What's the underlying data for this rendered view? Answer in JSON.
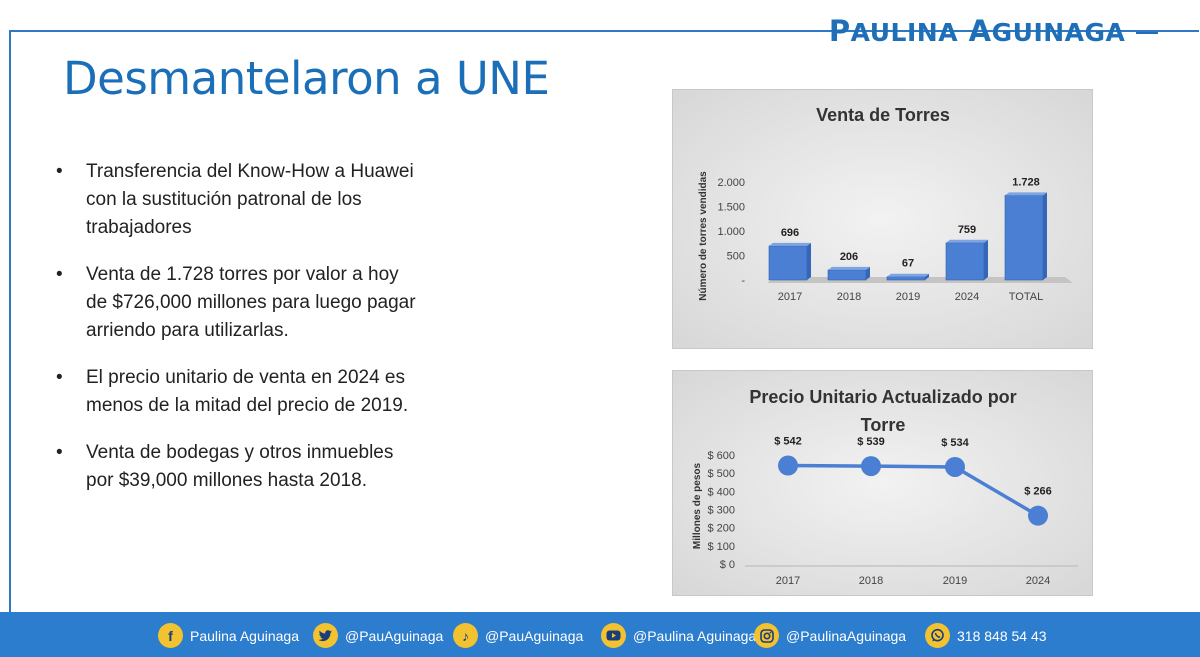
{
  "brand": {
    "name_p": "P",
    "name_rest1": "AULINA",
    "name_a": "A",
    "name_rest2": "GUINAGA"
  },
  "slide": {
    "title": "Desmantelaron a UNE"
  },
  "bullets": [
    {
      "text": "Transferencia del Know-How a Huawei con la sustitución patronal de los trabajadores"
    },
    {
      "text": "Venta de 1.728 torres por valor a hoy de $726,000 millones para luego pagar arriendo para utilizarlas."
    },
    {
      "text": "El precio unitario de venta en 2024 es menos de la mitad del precio de 2019."
    },
    {
      "text": "Venta de bodegas y otros inmuebles por $39,000 millones hasta 2018."
    }
  ],
  "bullet_symbol": "•",
  "colors": {
    "accent": "#2f78c4",
    "bar": "#4a7fd4",
    "line": "#4a7fd4",
    "footer": "#2c7dcd",
    "icon": "#f2c230"
  },
  "chart_data": [
    {
      "type": "bar",
      "title": "Venta de Torres",
      "ylabel": "Número de torres vendidas",
      "xlabel": "",
      "categories": [
        "2017",
        "2018",
        "2019",
        "2024",
        "TOTAL"
      ],
      "values": [
        696,
        206,
        67,
        759,
        1728
      ],
      "data_labels": [
        "696",
        "206",
        "67",
        "759",
        "1.728"
      ],
      "ylim": [
        0,
        2000
      ],
      "yticks": [
        {
          "value": 0,
          "label": "-"
        },
        {
          "value": 500,
          "label": "500"
        },
        {
          "value": 1000,
          "label": "1.000"
        },
        {
          "value": 1500,
          "label": "1.500"
        },
        {
          "value": 2000,
          "label": "2.000"
        }
      ],
      "grid": false,
      "style": "3d"
    },
    {
      "type": "line",
      "title": "Precio Unitario Actualizado por Torre",
      "title_lines": [
        "Precio Unitario Actualizado por",
        "Torre"
      ],
      "ylabel": "Millones de pesos",
      "xlabel": "",
      "x": [
        "2017",
        "2018",
        "2019",
        "2024"
      ],
      "values": [
        542,
        539,
        534,
        266
      ],
      "data_labels": [
        "$ 542",
        "$ 539",
        "$ 534",
        "$ 266"
      ],
      "ylim": [
        0,
        600
      ],
      "yticks": [
        {
          "value": 0,
          "label": "$ 0"
        },
        {
          "value": 100,
          "label": "$ 100"
        },
        {
          "value": 200,
          "label": "$ 200"
        },
        {
          "value": 300,
          "label": "$ 300"
        },
        {
          "value": 400,
          "label": "$ 400"
        },
        {
          "value": 500,
          "label": "$ 500"
        },
        {
          "value": 600,
          "label": "$ 600"
        }
      ],
      "grid": false,
      "markers": true
    }
  ],
  "footer": {
    "items": [
      {
        "icon": "facebook-icon",
        "glyph": "f",
        "text": "Paulina Aguinaga"
      },
      {
        "icon": "twitter-icon",
        "glyph": "",
        "text": "@PauAguinaga"
      },
      {
        "icon": "tiktok-icon",
        "glyph": "♪",
        "text": "@PauAguinaga"
      },
      {
        "icon": "youtube-icon",
        "glyph": "",
        "text": "@Paulina Aguinaga"
      },
      {
        "icon": "instagram-icon",
        "glyph": "",
        "text": "@PaulinaAguinaga"
      },
      {
        "icon": "whatsapp-icon",
        "glyph": "",
        "text": "318 848 54 43"
      }
    ]
  }
}
